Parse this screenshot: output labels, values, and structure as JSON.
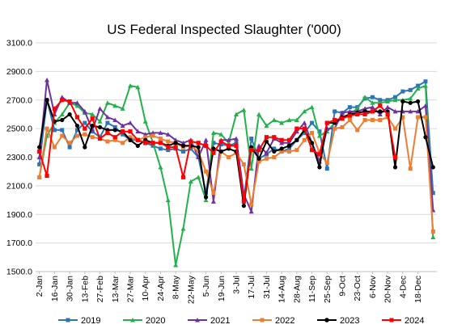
{
  "chart_data": {
    "type": "line",
    "title": "US Federal Inspected Slaughter ('000)",
    "xlabel": "",
    "ylabel": "",
    "ylim": [
      1500,
      3100
    ],
    "yticks": [
      "1500.0",
      "1700.0",
      "1900.0",
      "2100.0",
      "2300.0",
      "2500.0",
      "2700.0",
      "2900.0",
      "3100.0"
    ],
    "x_tick_labels": [
      "2-Jan",
      "16-Jan",
      "30-Jan",
      "13-Feb",
      "27-Feb",
      "13-Mar",
      "27-Mar",
      "10-Apr",
      "24-Apr",
      "8-May",
      "22-May",
      "5-Jun",
      "19-Jun",
      "3-Jul",
      "17-Jul",
      "31-Jul",
      "14-Aug",
      "28-Aug",
      "11-Sep",
      "25-Sep",
      "9-Oct",
      "23-Oct",
      "6-Nov",
      "20-Nov",
      "4-Dec",
      "18-Dec"
    ],
    "weeks": 53,
    "legend_position": "bottom",
    "grid": true,
    "series": [
      {
        "name": "2019",
        "color": "#2E75B6",
        "values": [
          2250,
          2700,
          2490,
          2490,
          2370,
          2490,
          2540,
          2480,
          2440,
          2540,
          2510,
          2460,
          2420,
          2420,
          2400,
          2380,
          2360,
          2350,
          2360,
          2340,
          2360,
          2300,
          2050,
          2400,
          2390,
          2380,
          2400,
          2000,
          2430,
          2290,
          2320,
          2360,
          2340,
          2360,
          2420,
          2470,
          2540,
          2480,
          2220,
          2620,
          2610,
          2650,
          2650,
          2710,
          2720,
          2700,
          2700,
          2720,
          2760,
          2770,
          2800,
          2830,
          2050
        ]
      },
      {
        "name": "2020",
        "color": "#22B14C",
        "values": [
          2160,
          2450,
          2540,
          2600,
          2680,
          2660,
          2610,
          2600,
          2550,
          2680,
          2660,
          2640,
          2800,
          2790,
          2550,
          2400,
          2230,
          2000,
          1545,
          1800,
          2130,
          2160,
          2000,
          2470,
          2460,
          2400,
          2600,
          2630,
          2220,
          2600,
          2520,
          2560,
          2540,
          2560,
          2560,
          2620,
          2650,
          2450,
          2480,
          2540,
          2570,
          2600,
          2640,
          2720,
          2680,
          2680,
          2690,
          2700,
          2700,
          2710,
          2780,
          2800,
          1740
        ]
      },
      {
        "name": "2021",
        "color": "#7030A0",
        "values": [
          2300,
          2840,
          2600,
          2720,
          2680,
          2680,
          2620,
          2490,
          2640,
          2580,
          2560,
          2520,
          2540,
          2480,
          2460,
          2470,
          2470,
          2460,
          2420,
          2400,
          2420,
          2300,
          2420,
          1990,
          2420,
          2420,
          2430,
          2040,
          1920,
          2380,
          2330,
          2430,
          2400,
          2400,
          2480,
          2540,
          2400,
          2270,
          2500,
          2500,
          2610,
          2620,
          2620,
          2640,
          2650,
          2600,
          2650,
          2620,
          2620,
          2620,
          2620,
          2660,
          1930
        ]
      },
      {
        "name": "2022",
        "color": "#ED7D31",
        "values": [
          2160,
          2500,
          2370,
          2450,
          2400,
          2450,
          2460,
          2440,
          2430,
          2410,
          2420,
          2400,
          2440,
          2420,
          2440,
          2450,
          2430,
          2410,
          2400,
          2370,
          2380,
          2340,
          2200,
          2050,
          2340,
          2300,
          2330,
          2250,
          1970,
          2270,
          2290,
          2300,
          2340,
          2340,
          2350,
          2420,
          2470,
          2330,
          2260,
          2500,
          2510,
          2560,
          2490,
          2560,
          2560,
          2560,
          2580,
          2500,
          2580,
          2220,
          2580,
          2580,
          1780
        ]
      },
      {
        "name": "2023",
        "color": "#000000",
        "values": [
          2370,
          2700,
          2550,
          2560,
          2600,
          2520,
          2370,
          2520,
          2510,
          2490,
          2490,
          2480,
          2420,
          2380,
          2420,
          2400,
          2400,
          2380,
          2400,
          2380,
          2380,
          2370,
          2020,
          2360,
          2340,
          2360,
          2340,
          1960,
          2370,
          2290,
          2410,
          2340,
          2360,
          2380,
          2420,
          2490,
          2400,
          2230,
          2540,
          2540,
          2580,
          2600,
          2610,
          2620,
          2620,
          2620,
          2620,
          2230,
          2690,
          2680,
          2690,
          2440,
          2230
        ]
      },
      {
        "name": "2024",
        "color": "#FF0000",
        "values": [
          2340,
          2170,
          2640,
          2700,
          2690,
          2580,
          2500,
          2570,
          2430,
          2470,
          2440,
          2480,
          2480,
          2420,
          2400,
          2400,
          2400,
          2370,
          2370,
          2160,
          2410,
          2400,
          2380,
          2330,
          2410,
          2380,
          2380,
          1990,
          2350,
          2350,
          2440,
          2440,
          2420,
          2420,
          2500,
          2500,
          2350,
          2320,
          2540,
          2560,
          2570,
          2590,
          2600,
          2600,
          2620,
          2660,
          2600,
          2300,
          null,
          null,
          null,
          null,
          null
        ]
      }
    ]
  }
}
